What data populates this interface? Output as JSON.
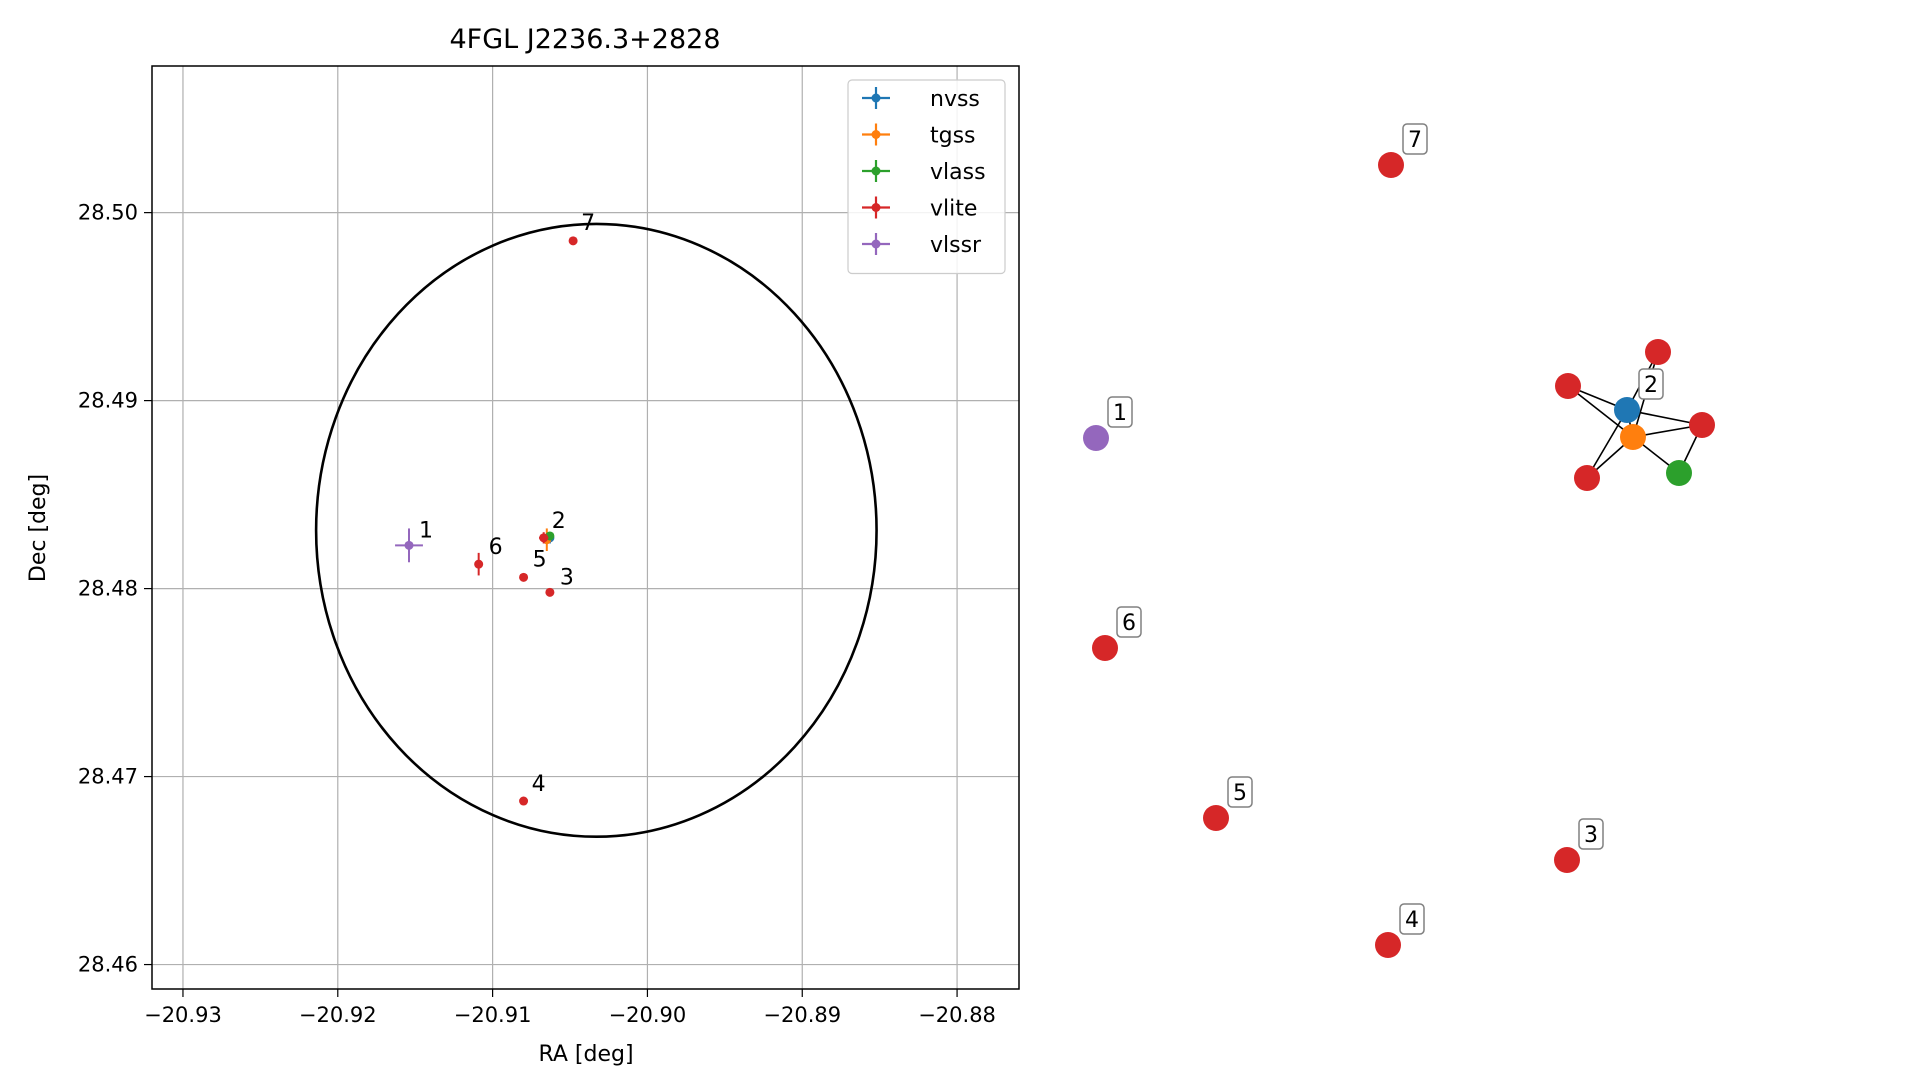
{
  "chart_data": [
    {
      "type": "scatter",
      "title": "4FGL J2236.3+2828",
      "xlabel": "RA [deg]",
      "ylabel": "Dec [deg]",
      "xlim": [
        -20.932,
        -20.876
      ],
      "ylim": [
        28.4587,
        28.5078
      ],
      "xticks": [
        -20.93,
        -20.92,
        -20.91,
        -20.9,
        -20.89,
        -20.88
      ],
      "xtick_labels": [
        "−20.93",
        "−20.92",
        "−20.91",
        "−20.90",
        "−20.89",
        "−20.88"
      ],
      "yticks": [
        28.46,
        28.47,
        28.48,
        28.49,
        28.5
      ],
      "ytick_labels": [
        "28.46",
        "28.47",
        "28.48",
        "28.49",
        "28.50"
      ],
      "grid": true,
      "legend_position": "top-right",
      "ellipse": {
        "center_ra": -20.9033,
        "center_dec": 28.4831,
        "semi_ra": 0.0181,
        "semi_dec": 0.0163,
        "color": "#000000"
      },
      "series": [
        {
          "name": "nvss",
          "color": "#1f77b4",
          "points": [
            {
              "ra": -20.9063,
              "dec": 28.4827,
              "label": "",
              "xerr": 0.0002,
              "yerr": 0.0003
            }
          ]
        },
        {
          "name": "tgss",
          "color": "#ff7f0e",
          "points": [
            {
              "ra": -20.9065,
              "dec": 28.4826,
              "label": "",
              "xerr": 0.0002,
              "yerr": 0.0006
            }
          ]
        },
        {
          "name": "vlass",
          "color": "#2ca02c",
          "points": [
            {
              "ra": -20.9063,
              "dec": 28.4828,
              "label": "",
              "xerr": 0.0001,
              "yerr": 0.0001
            }
          ]
        },
        {
          "name": "vlite",
          "color": "#d62728",
          "points": [
            {
              "ra": -20.9067,
              "dec": 28.4827,
              "label": "2",
              "xerr": 0.0003,
              "yerr": 0.0003
            },
            {
              "ra": -20.9063,
              "dec": 28.4798,
              "label": "3",
              "xerr": 0.0001,
              "yerr": 0.0001
            },
            {
              "ra": -20.908,
              "dec": 28.4687,
              "label": "4",
              "xerr": 0.0001,
              "yerr": 0.0001
            },
            {
              "ra": -20.908,
              "dec": 28.4806,
              "label": "5",
              "xerr": 0.0001,
              "yerr": 0.0001
            },
            {
              "ra": -20.9109,
              "dec": 28.4813,
              "label": "6",
              "xerr": 0.0001,
              "yerr": 0.0006
            },
            {
              "ra": -20.9048,
              "dec": 28.4985,
              "label": "7",
              "xerr": 0.0001,
              "yerr": 0.0001
            }
          ]
        },
        {
          "name": "vlssr",
          "color": "#9467bd",
          "points": [
            {
              "ra": -20.9154,
              "dec": 28.4823,
              "label": "1",
              "xerr": 0.0009,
              "yerr": 0.0009
            }
          ]
        }
      ]
    },
    {
      "type": "network",
      "nodes": [
        {
          "id": "1",
          "label": "1",
          "color": "#9467bd"
        },
        {
          "id": "2",
          "label": "2",
          "color": "#1f77b4"
        },
        {
          "id": "tgss",
          "label": "",
          "color": "#ff7f0e"
        },
        {
          "id": "vlass",
          "label": "",
          "color": "#2ca02c"
        },
        {
          "id": "vl-a",
          "label": "",
          "color": "#d62728"
        },
        {
          "id": "vl-b",
          "label": "",
          "color": "#d62728"
        },
        {
          "id": "vl-c",
          "label": "",
          "color": "#d62728"
        },
        {
          "id": "vl-d",
          "label": "",
          "color": "#d62728"
        },
        {
          "id": "3",
          "label": "3",
          "color": "#d62728"
        },
        {
          "id": "4",
          "label": "4",
          "color": "#d62728"
        },
        {
          "id": "5",
          "label": "5",
          "color": "#d62728"
        },
        {
          "id": "6",
          "label": "6",
          "color": "#d62728"
        },
        {
          "id": "7",
          "label": "7",
          "color": "#d62728"
        }
      ],
      "edges": [
        [
          "2",
          "tgss"
        ],
        [
          "2",
          "vl-a"
        ],
        [
          "2",
          "vl-b"
        ],
        [
          "2",
          "vl-c"
        ],
        [
          "2",
          "vl-d"
        ],
        [
          "tgss",
          "vl-a"
        ],
        [
          "tgss",
          "vl-b"
        ],
        [
          "tgss",
          "vl-c"
        ],
        [
          "tgss",
          "vl-d"
        ],
        [
          "tgss",
          "vlass"
        ],
        [
          "vlass",
          "vl-c"
        ]
      ]
    }
  ]
}
